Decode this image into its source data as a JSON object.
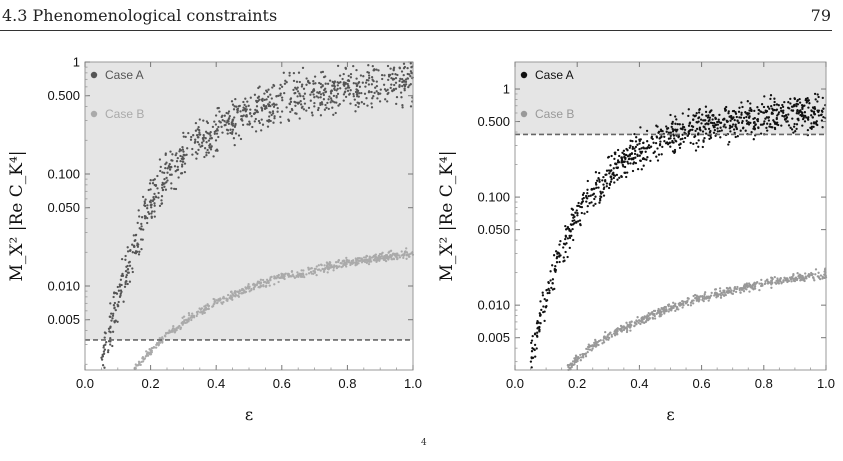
{
  "header": {
    "section": "4.3 Phenomenological constraints",
    "page": "79"
  },
  "footnote_text": "4",
  "chart_data": [
    {
      "type": "scatter",
      "xlabel": "ε",
      "ylabel": "M_X² |Re C_K⁴|",
      "xlim": [
        0,
        1
      ],
      "ylim_log10": [
        -2.75,
        0
      ],
      "log_y": true,
      "xticks": [
        "0.0",
        "0.2",
        "0.4",
        "0.6",
        "0.8",
        "1.0"
      ],
      "xtick_values": [
        0,
        0.2,
        0.4,
        0.6,
        0.8,
        1.0
      ],
      "yticks": [
        "1",
        "0.500",
        "0.100",
        "0.050",
        "0.010",
        "0.005"
      ],
      "ytick_values": [
        1,
        0.5,
        0.1,
        0.05,
        0.01,
        0.005
      ],
      "bound_line": 0.0033,
      "shade": "above",
      "legend": [
        "Case A",
        "Case B"
      ],
      "legend_placement": "top-left",
      "series": [
        {
          "name": "Case A",
          "color": "#555555",
          "ref_x": [
            0.05,
            0.1,
            0.2,
            0.3,
            0.4,
            0.5,
            0.6,
            0.8,
            1.0
          ],
          "ref_y": [
            0.002,
            0.008,
            0.06,
            0.15,
            0.25,
            0.35,
            0.45,
            0.58,
            0.68
          ],
          "scatter": 0.3,
          "count": 900
        },
        {
          "name": "Case B",
          "color": "#aaaaaa",
          "ref_x": [
            0.15,
            0.2,
            0.25,
            0.3,
            0.4,
            0.5,
            0.6,
            0.8,
            1.0
          ],
          "ref_y": [
            0.0018,
            0.0026,
            0.0037,
            0.0048,
            0.0072,
            0.0095,
            0.012,
            0.016,
            0.02
          ],
          "scatter": 0.06,
          "count": 600
        }
      ]
    },
    {
      "type": "scatter",
      "xlabel": "ε",
      "ylabel": "M_X² |Re C_K⁴|",
      "xlim": [
        0,
        1
      ],
      "ylim_log10": [
        -2.6,
        0.25
      ],
      "log_y": true,
      "xticks": [
        "0.0",
        "0.2",
        "0.4",
        "0.6",
        "0.8",
        "1.0"
      ],
      "xtick_values": [
        0,
        0.2,
        0.4,
        0.6,
        0.8,
        1.0
      ],
      "yticks": [
        "1",
        "0.500",
        "0.100",
        "0.050",
        "0.010",
        "0.005"
      ],
      "ytick_values": [
        1,
        0.5,
        0.1,
        0.05,
        0.01,
        0.005
      ],
      "bound_line": 0.38,
      "shade": "above",
      "legend": [
        "Case A",
        "Case B"
      ],
      "legend_placement": "top-left",
      "series": [
        {
          "name": "Case A",
          "color": "#111111",
          "ref_x": [
            0.05,
            0.1,
            0.15,
            0.2,
            0.3,
            0.4,
            0.5,
            0.6,
            0.8,
            1.0
          ],
          "ref_y": [
            0.003,
            0.012,
            0.035,
            0.07,
            0.16,
            0.27,
            0.38,
            0.46,
            0.57,
            0.63
          ],
          "scatter": 0.25,
          "count": 900
        },
        {
          "name": "Case B",
          "color": "#999999",
          "ref_x": [
            0.17,
            0.2,
            0.25,
            0.3,
            0.4,
            0.5,
            0.6,
            0.8,
            1.0
          ],
          "ref_y": [
            0.0026,
            0.0032,
            0.0042,
            0.0052,
            0.0072,
            0.0095,
            0.0118,
            0.0158,
            0.0195
          ],
          "scatter": 0.06,
          "count": 600
        }
      ]
    }
  ]
}
